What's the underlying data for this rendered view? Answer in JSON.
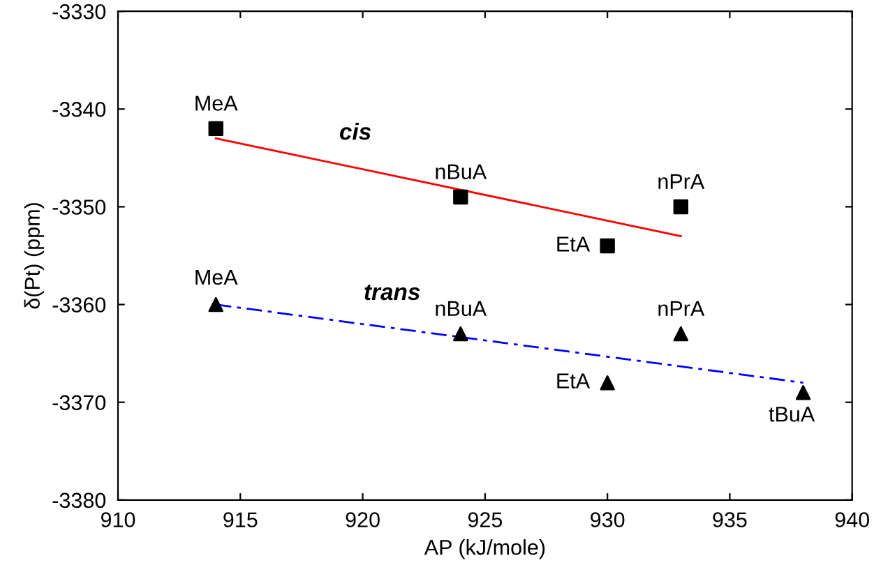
{
  "chart_data": {
    "type": "scatter",
    "xlabel": "AP (kJ/mole)",
    "ylabel": "δ(Pt) (ppm)",
    "xlim": [
      910,
      940
    ],
    "xticks": [
      910,
      915,
      920,
      925,
      930,
      935,
      940
    ],
    "ylim": [
      -3380,
      -3330
    ],
    "yticks": [
      -3380,
      -3370,
      -3360,
      -3350,
      -3340,
      -3330
    ],
    "grid": false,
    "legend": false,
    "series": [
      {
        "marker": "square",
        "color": "#000000",
        "x": [
          914,
          924,
          930,
          933
        ],
        "values": [
          -3342,
          -3349,
          -3354,
          -3350
        ]
      },
      {
        "marker": "triangle",
        "color": "#000000",
        "x": [
          914,
          924,
          930,
          933,
          938
        ],
        "values": [
          -3360,
          -3363,
          -3368,
          -3363,
          -3369
        ]
      },
      {
        "type": "line",
        "name": "cis",
        "color": "#ff0000",
        "line_style": "solid",
        "x": [
          914,
          933
        ],
        "values": [
          -3343,
          -3353
        ]
      },
      {
        "type": "line",
        "name": "trans",
        "color": "#0000ff",
        "line_style": "dashed",
        "x": [
          914,
          938
        ],
        "values": [
          -3360,
          -3368
        ]
      }
    ],
    "annotations": [
      {
        "text": "MeA",
        "x": 914,
        "y": -3342
      },
      {
        "text": "nBuA",
        "x": 924,
        "y": -3349
      },
      {
        "text": "EtA",
        "x": 930,
        "y": -3354
      },
      {
        "text": "nPrA",
        "x": 933,
        "y": -3350
      },
      {
        "text": "MeA",
        "x": 914,
        "y": -3360
      },
      {
        "text": "nBuA",
        "x": 924,
        "y": -3363
      },
      {
        "text": "EtA",
        "x": 930,
        "y": -3368
      },
      {
        "text": "nPrA",
        "x": 933,
        "y": -3363
      },
      {
        "text": "tBuA",
        "x": 938,
        "y": -3369
      }
    ]
  }
}
